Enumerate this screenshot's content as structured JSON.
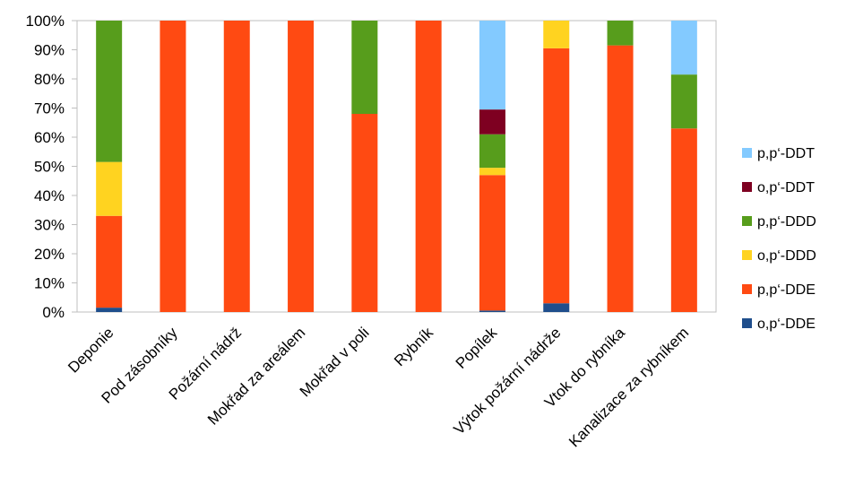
{
  "chart_data": {
    "type": "bar",
    "stacked": true,
    "normalized": true,
    "categories": [
      "Deponie",
      "Pod zásobníky",
      "Požární nádrž",
      "Mokřad za areálem",
      "Mokřad v poli",
      "Rybník",
      "Popílek",
      "Výtok požární nádrže",
      "Vtok do rybníka",
      "Kanalizace za rybníkem"
    ],
    "series": [
      {
        "name": "o,p‘-DDE",
        "color": "#1F4E8C",
        "values": [
          1.5,
          0,
          0,
          0,
          0,
          0,
          0.5,
          3,
          0,
          0
        ]
      },
      {
        "name": "p,p‘-DDE",
        "color": "#FF4A12",
        "values": [
          31.5,
          100,
          100,
          100,
          68,
          100,
          46.5,
          87.5,
          91.5,
          63
        ]
      },
      {
        "name": "o,p‘-DDD",
        "color": "#FFD320",
        "values": [
          18.5,
          0,
          0,
          0,
          0,
          0,
          2.5,
          9.5,
          0,
          0
        ]
      },
      {
        "name": "p,p‘-DDD",
        "color": "#579D1C",
        "values": [
          48.5,
          0,
          0,
          0,
          32,
          0,
          11.5,
          0,
          8.5,
          18.5
        ]
      },
      {
        "name": "o,p‘-DDT",
        "color": "#7E0021",
        "values": [
          0,
          0,
          0,
          0,
          0,
          0,
          8.5,
          0,
          0,
          0
        ]
      },
      {
        "name": "p,p‘-DDT",
        "color": "#83CAFF",
        "values": [
          0,
          0,
          0,
          0,
          0,
          0,
          30.5,
          0,
          0,
          18.5
        ]
      }
    ],
    "ylim": [
      0,
      100
    ],
    "yticks": [
      "0%",
      "10%",
      "20%",
      "30%",
      "40%",
      "50%",
      "60%",
      "70%",
      "80%",
      "90%",
      "100%"
    ],
    "grid": false,
    "legend": "right"
  }
}
